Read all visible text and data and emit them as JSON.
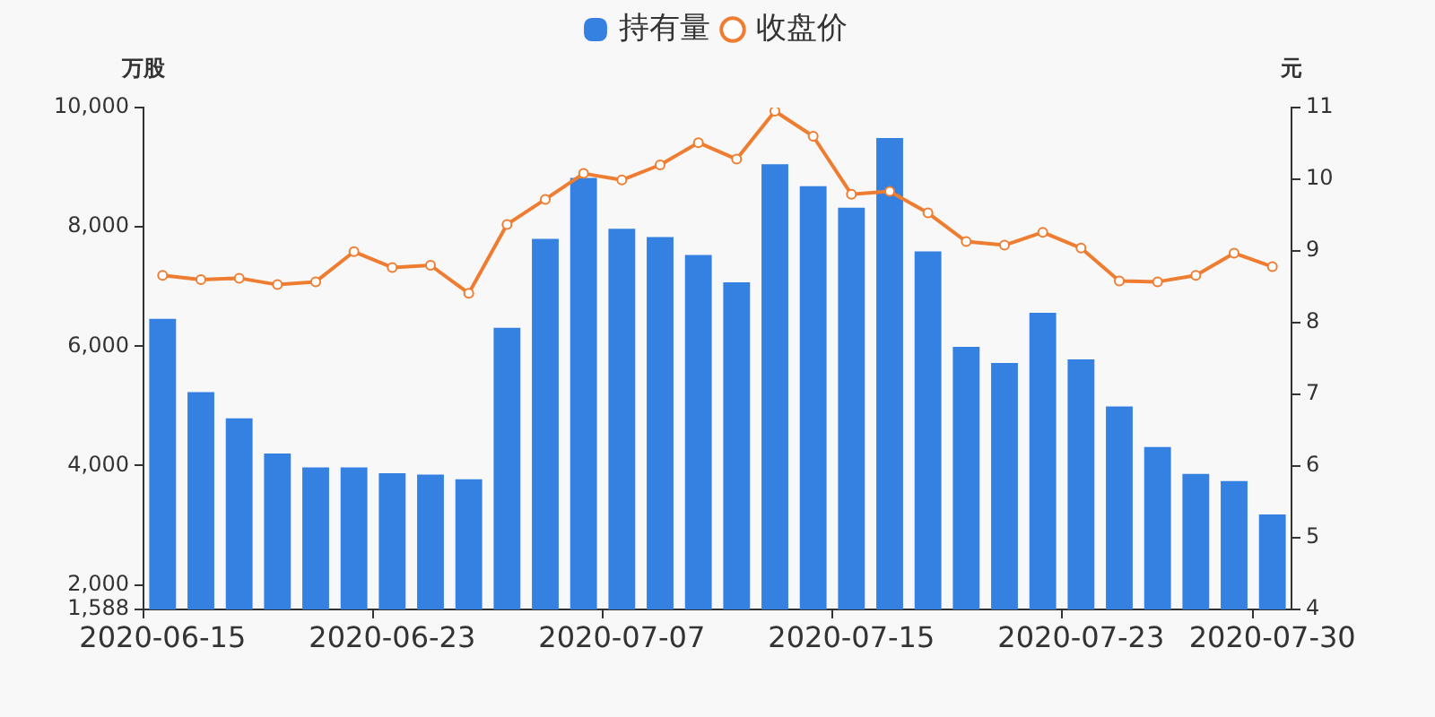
{
  "chart_data": {
    "type": "bar",
    "categories": [
      "2020-06-15",
      null,
      null,
      null,
      null,
      null,
      "2020-06-23",
      null,
      null,
      null,
      null,
      null,
      "2020-07-07",
      null,
      null,
      null,
      null,
      null,
      "2020-07-15",
      null,
      null,
      null,
      null,
      null,
      "2020-07-23",
      null,
      null,
      null,
      null,
      "2020-07-30"
    ],
    "ylabel": "万股",
    "y2label": "元",
    "series": [
      {
        "name": "持有量",
        "color": "#3581e2",
        "values": [
          6460,
          5230,
          4790,
          4200,
          3970,
          3970,
          3870,
          3850,
          3770,
          6310,
          7800,
          8820,
          7970,
          7830,
          7530,
          7070,
          9050,
          8680,
          8320,
          9490,
          7590,
          5990,
          5720,
          6560,
          5780,
          4990,
          4310,
          3860,
          3740,
          3180
        ]
      },
      {
        "name": "收盘价",
        "type": "line",
        "axis": "y2",
        "color": "#ef7d31",
        "values": [
          8.66,
          8.6,
          8.62,
          8.53,
          8.57,
          8.99,
          8.77,
          8.8,
          8.41,
          9.37,
          9.72,
          10.08,
          9.99,
          10.2,
          10.51,
          10.28,
          10.95,
          10.6,
          9.79,
          9.83,
          9.53,
          9.13,
          9.08,
          9.26,
          9.04,
          8.58,
          8.57,
          8.66,
          8.97,
          8.78
        ]
      }
    ],
    "ylim": [
      1588,
      10000
    ],
    "yticks": [
      {
        "value": 1588,
        "label": "1,588"
      },
      {
        "value": 2000,
        "label": "2,000"
      },
      {
        "value": 4000,
        "label": "4,000"
      },
      {
        "value": 6000,
        "label": "6,000"
      },
      {
        "value": 8000,
        "label": "8,000"
      },
      {
        "value": 10000,
        "label": "10,000"
      }
    ],
    "y2lim": [
      4,
      11
    ],
    "y2ticks": [
      4,
      5,
      6,
      7,
      8,
      9,
      10,
      11
    ],
    "legend": "top",
    "marker": "circle"
  }
}
